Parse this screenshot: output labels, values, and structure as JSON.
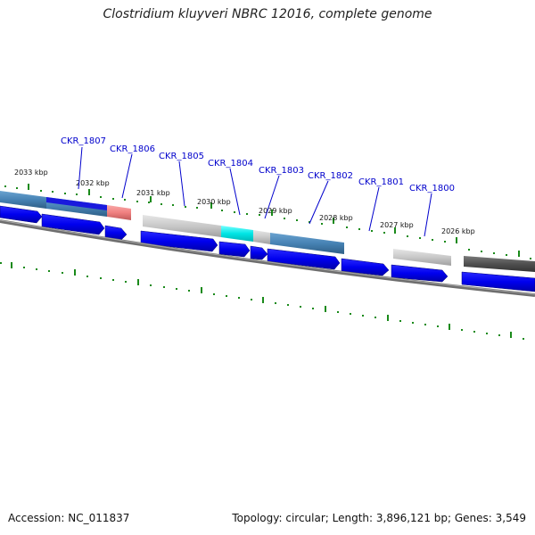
{
  "title": "Clostridium kluyveri NBRC 12016, complete genome",
  "accession_line": "Accession: NC_011837",
  "summary_line": "Topology: circular; Length: 3,896,121 bp; Genes: 3,549",
  "scale_labels": [
    "2033 kbp",
    "2032 kbp",
    "2031 kbp",
    "2030 kbp",
    "2029 kbp",
    "2028 kbp",
    "2027 kbp",
    "2026 kbp"
  ],
  "gene_labels": [
    "CKR_1807",
    "CKR_1806",
    "CKR_1805",
    "CKR_1804",
    "CKR_1803",
    "CKR_1802",
    "CKR_1801",
    "CKR_1800"
  ],
  "colors": {
    "gene_arrow": "#0000ee",
    "tick": "#1a8a1a",
    "backbone": "#808080",
    "label": "#0000cc",
    "steelblue_block": "#4682b4",
    "salmon_block": "#f08080",
    "silver_block": "#c8c8c8",
    "cyan_block": "#00e5e5",
    "dark_block": "#505050"
  }
}
